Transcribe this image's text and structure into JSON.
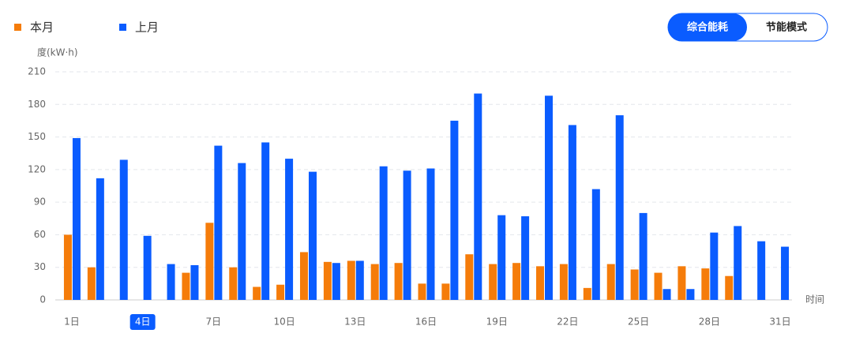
{
  "chart_data": {
    "type": "bar",
    "y_axis_label": "度(kW·h)",
    "x_axis_label": "时间",
    "tabs": [
      "综合能耗",
      "节能模式"
    ],
    "highlight": "4日",
    "categories": [
      "1日",
      null,
      null,
      "4日",
      null,
      null,
      "7日",
      null,
      null,
      "10日",
      null,
      null,
      "13日",
      null,
      null,
      "16日",
      null,
      null,
      "19日",
      null,
      null,
      "22日",
      null,
      null,
      "25日",
      null,
      null,
      "28日",
      null,
      null,
      "31日"
    ],
    "series": [
      {
        "name": "本月",
        "color": "#f57c0a",
        "values": [
          60,
          30,
          null,
          null,
          null,
          25,
          71,
          30,
          12,
          14,
          44,
          35,
          36,
          33,
          34,
          15,
          15,
          42,
          33,
          34,
          31,
          33,
          11,
          33,
          28,
          25,
          31,
          29,
          22,
          null,
          null
        ]
      },
      {
        "name": "上月",
        "color": "#0a5cff",
        "values": [
          149,
          112,
          129,
          59,
          33,
          32,
          142,
          126,
          145,
          130,
          118,
          34,
          36,
          123,
          119,
          121,
          165,
          190,
          78,
          77,
          188,
          161,
          102,
          170,
          80,
          10,
          10,
          62,
          68,
          54,
          49
        ]
      }
    ],
    "ylim": [
      0,
      210
    ],
    "yticks": [
      0,
      30,
      60,
      90,
      120,
      150,
      180,
      210
    ],
    "grid": true
  }
}
